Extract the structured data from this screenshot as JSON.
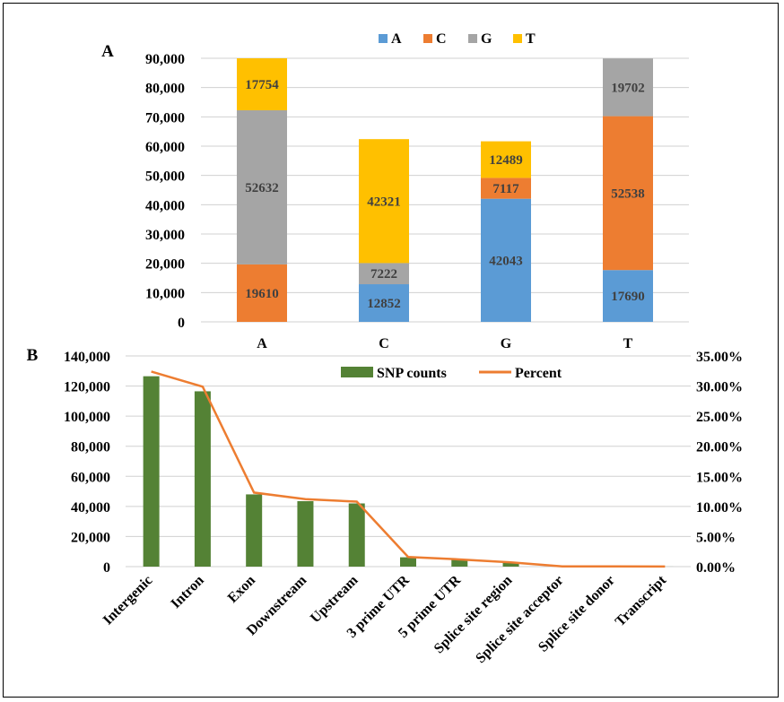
{
  "chart_data": [
    {
      "panel": "A",
      "type": "bar",
      "stacked": true,
      "categories": [
        "A",
        "C",
        "G",
        "T"
      ],
      "series": [
        {
          "name": "A",
          "color": "#5B9BD5",
          "values": [
            0,
            12852,
            42043,
            17690
          ],
          "labels": [
            "",
            "12852",
            "42043",
            "17690"
          ]
        },
        {
          "name": "C",
          "color": "#ED7D31",
          "values": [
            19610,
            0,
            7117,
            52538
          ],
          "labels": [
            "19610",
            "",
            "7117",
            "52538"
          ]
        },
        {
          "name": "G",
          "color": "#A5A5A5",
          "values": [
            52632,
            7222,
            0,
            19702
          ],
          "labels": [
            "52632",
            "7222",
            "",
            "19702"
          ]
        },
        {
          "name": "T",
          "color": "#FFC000",
          "values": [
            17754,
            42321,
            12489,
            0
          ],
          "labels": [
            "17754",
            "42321",
            "12489",
            ""
          ]
        }
      ],
      "ylim": [
        0,
        90000
      ],
      "yticks": [
        "0",
        "10,000",
        "20,000",
        "30,000",
        "40,000",
        "50,000",
        "60,000",
        "70,000",
        "80,000",
        "90,000"
      ],
      "legend": "top",
      "grid": true
    },
    {
      "panel": "B",
      "type": "bar+line",
      "categories": [
        "Intergenic",
        "Intron",
        "Exon",
        "Downstream",
        "Upstream",
        "3 prime UTR",
        "5 prime UTR",
        "Splice site region",
        "Splice site acceptor",
        "Splice site donor",
        "Transcript"
      ],
      "series": [
        {
          "name": "SNP counts",
          "type": "bar",
          "axis": "left",
          "color": "#548235",
          "values": [
            126500,
            116500,
            48000,
            43500,
            42000,
            6200,
            4800,
            2800,
            150,
            100,
            30
          ]
        },
        {
          "name": "Percent",
          "type": "line",
          "axis": "right",
          "color": "#ED7D31",
          "values": [
            32.4,
            29.9,
            12.3,
            11.2,
            10.8,
            1.6,
            1.2,
            0.7,
            0.04,
            0.03,
            0.01
          ]
        }
      ],
      "ylim_left": [
        0,
        140000
      ],
      "yticks_left": [
        "0",
        "20,000",
        "40,000",
        "60,000",
        "80,000",
        "100,000",
        "120,000",
        "140,000"
      ],
      "ylim_right": [
        0,
        35
      ],
      "yticks_right": [
        "0.00%",
        "5.00%",
        "10.00%",
        "15.00%",
        "20.00%",
        "25.00%",
        "30.00%",
        "35.00%"
      ],
      "legend": "top",
      "grid": true
    }
  ]
}
